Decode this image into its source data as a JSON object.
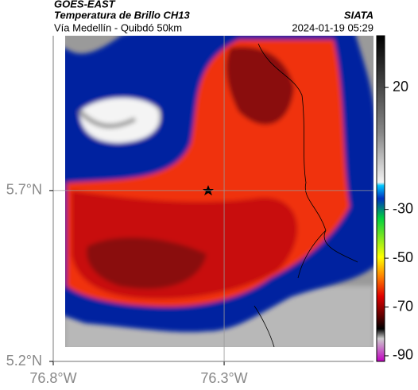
{
  "header": {
    "satellite": "GOES-EAST",
    "title": "Temperatura de Brillo CH13",
    "subtitle": "Vía Medellín - Quibdó 50km",
    "brand": "SIATA",
    "datetime": "2024-01-19 05:29"
  },
  "chart_data": {
    "type": "map",
    "xlim": [
      -76.8,
      -75.863
    ],
    "ylim": [
      5.2,
      6.153
    ],
    "xticks": [
      {
        "value": -76.8,
        "label": "76.8°W"
      },
      {
        "value": -76.3,
        "label": "76.3°W"
      }
    ],
    "yticks": [
      {
        "value": 5.2,
        "label": "5.2°N"
      },
      {
        "value": 5.7,
        "label": "5.7°N"
      }
    ],
    "grid": true,
    "colorbar": {
      "clim": [
        -92.3,
        41.2
      ],
      "ticks": [
        20,
        -30,
        -50,
        -70,
        -90
      ]
    }
  }
}
